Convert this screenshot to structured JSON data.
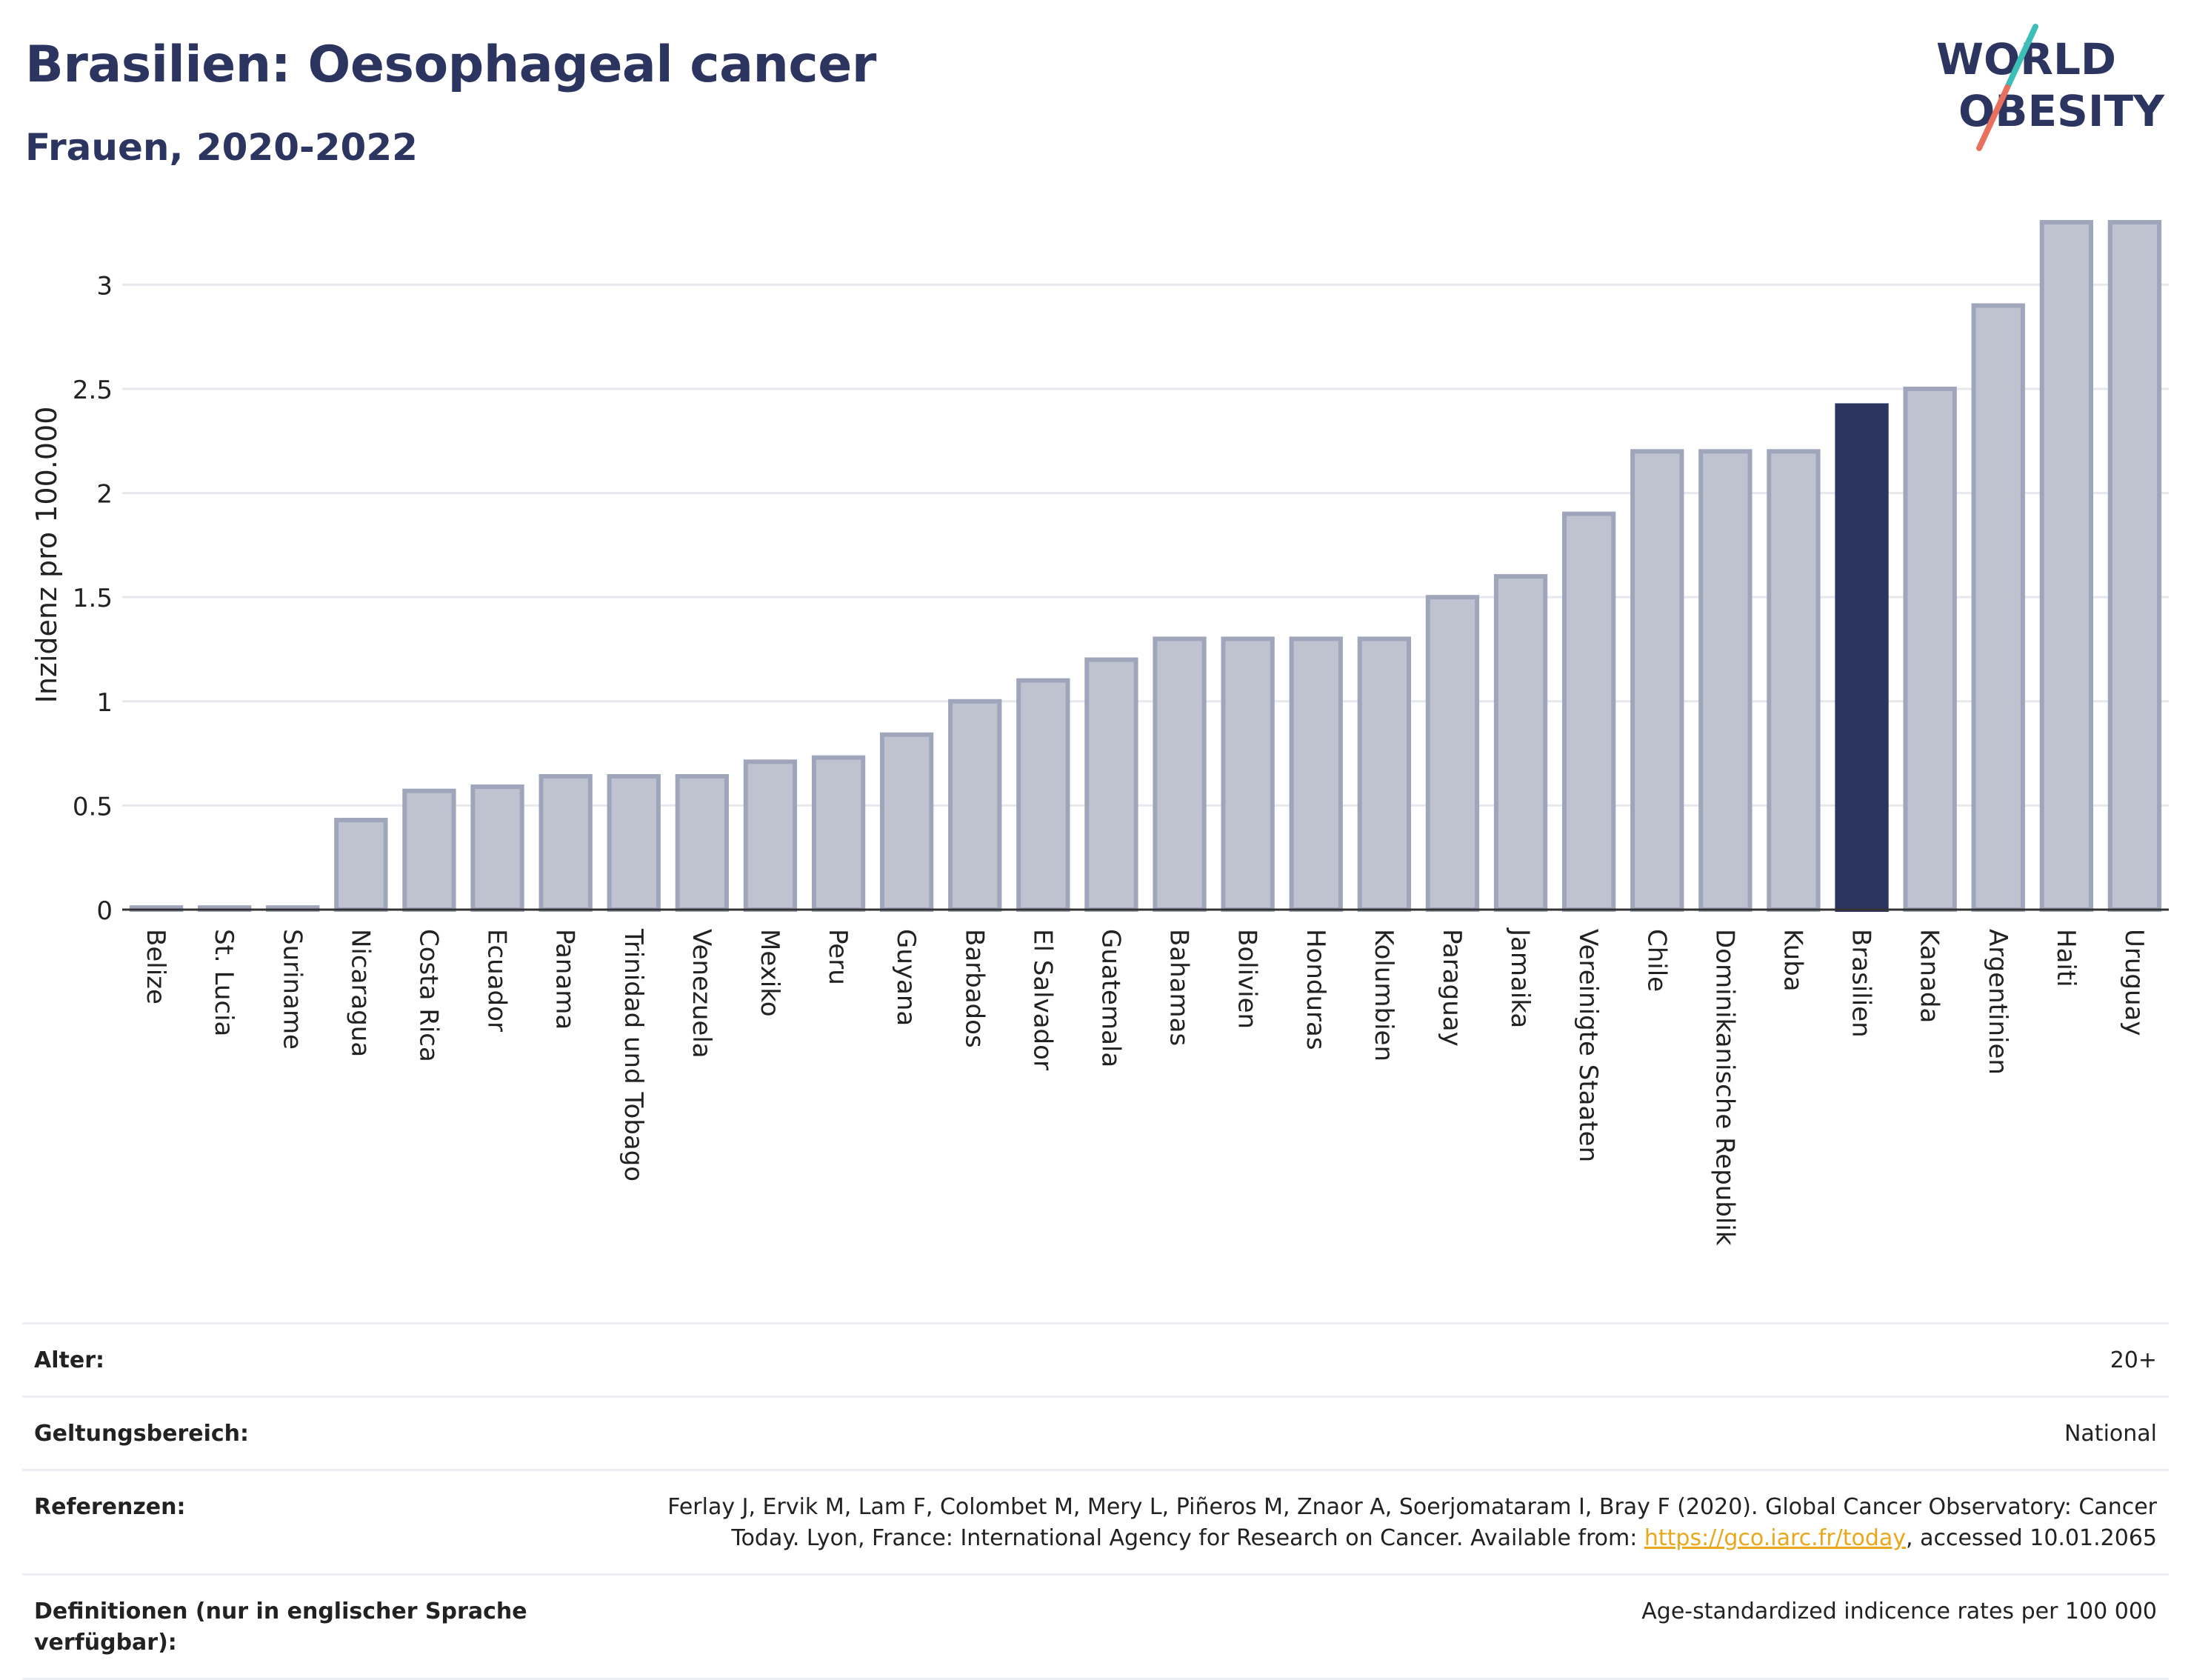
{
  "header": {
    "title": "Brasilien: Oesophageal cancer",
    "subtitle": "Frauen, 2020-2022"
  },
  "logo": {
    "line1": "WORLD",
    "line2": "OBESITY",
    "text_color": "#2b3560",
    "slash_colors": [
      "#3dbfb8",
      "#e8705f"
    ]
  },
  "colors": {
    "bar_default": "#bfc3d0",
    "bar_default_stroke": "#9fa5bb",
    "bar_highlight": "#2b3560",
    "grid": "#e6e8ee",
    "axis": "#333333"
  },
  "chart_data": {
    "type": "bar",
    "title": "Brasilien: Oesophageal cancer",
    "subtitle": "Frauen, 2020-2022",
    "ylabel": "Inzidenz pro 100.000",
    "xlabel": "",
    "ylim": [
      0,
      3.3
    ],
    "yticks": [
      0,
      0.5,
      1,
      1.5,
      2,
      2.5,
      3
    ],
    "ytick_labels": [
      "0",
      "0.5",
      "1",
      "1.5",
      "2",
      "2.5",
      "3"
    ],
    "grid": true,
    "highlight": "Brasilien",
    "categories": [
      "Belize",
      "St. Lucia",
      "Suriname",
      "Nicaragua",
      "Costa Rica",
      "Ecuador",
      "Panama",
      "Trinidad und Tobago",
      "Venezuela",
      "Mexiko",
      "Peru",
      "Guyana",
      "Barbados",
      "El Salvador",
      "Guatemala",
      "Bahamas",
      "Bolivien",
      "Honduras",
      "Kolumbien",
      "Paraguay",
      "Jamaika",
      "Vereinigte Staaten",
      "Chile",
      "Dominikanische Republik",
      "Kuba",
      "Brasilien",
      "Kanada",
      "Argentinien",
      "Haiti",
      "Uruguay"
    ],
    "values": [
      0.01,
      0.01,
      0.01,
      0.43,
      0.57,
      0.59,
      0.64,
      0.64,
      0.64,
      0.71,
      0.73,
      0.84,
      1.0,
      1.1,
      1.2,
      1.3,
      1.3,
      1.3,
      1.3,
      1.5,
      1.6,
      1.9,
      2.2,
      2.2,
      2.2,
      2.42,
      2.5,
      2.9,
      3.3,
      3.3
    ]
  },
  "info": {
    "rows": [
      {
        "label": "Alter:",
        "value": "20+"
      },
      {
        "label": "Geltungsbereich:",
        "value": "National"
      },
      {
        "label": "Referenzen:",
        "value_line1": "Ferlay J, Ervik M, Lam F, Colombet M, Mery L, Piñeros M, Znaor A, Soerjomataram I, Bray F (2020). Global Cancer Observatory: Cancer",
        "value_line2_pre": "Today. Lyon, France: International Agency for Research on Cancer. Available from: ",
        "link": "https://gco.iarc.fr/today",
        "value_line2_post": ", accessed 10.01.2065"
      },
      {
        "label": "Definitionen (nur in englischer Sprache verfügbar):",
        "value": "Age-standardized indicence rates per 100 000"
      }
    ]
  }
}
